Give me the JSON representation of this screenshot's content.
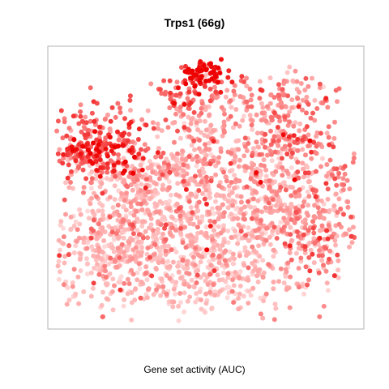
{
  "chart_data": {
    "type": "scatter",
    "title": "Trps1 (66g)",
    "xlabel": "Gene set activity (AUC)",
    "ylabel": "",
    "embedding": "tSNE",
    "color_scale": {
      "low": "#ffd9d9",
      "mid": "#ffaaaa",
      "high": "#ee0000"
    },
    "axes_visible": false,
    "grid": false,
    "legend": "none",
    "cluster_summary": [
      {
        "region": "top-center",
        "activity": "high"
      },
      {
        "region": "left",
        "activity": "high"
      },
      {
        "region": "top-right",
        "activity": "medium"
      },
      {
        "region": "center",
        "activity": "low-medium"
      },
      {
        "region": "bottom",
        "activity": "low"
      }
    ]
  }
}
